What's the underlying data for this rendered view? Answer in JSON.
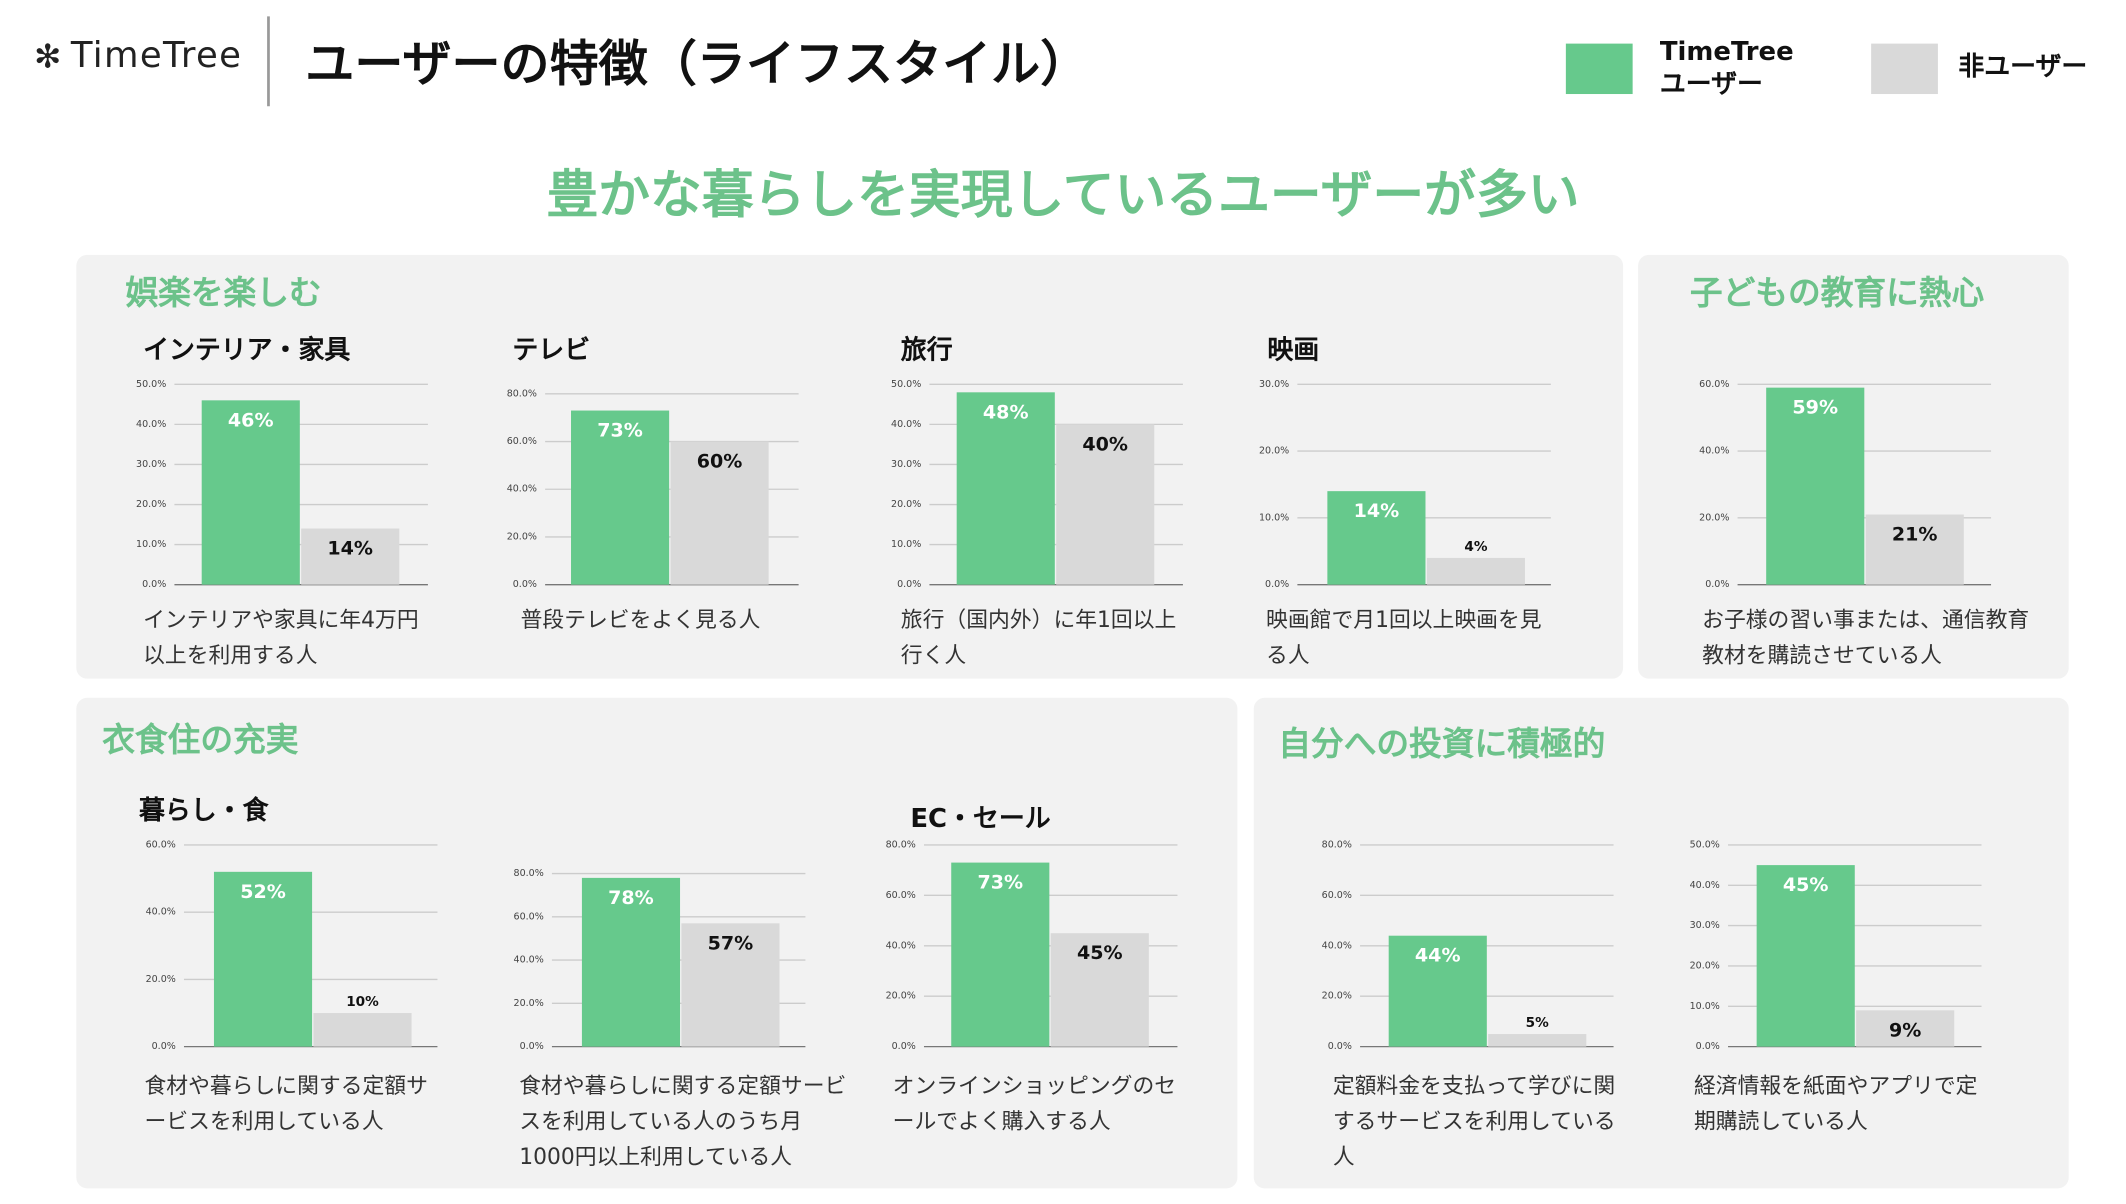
{
  "header": {
    "logo": "TimeTree",
    "title": "ユーザーの特徴（ライフスタイル）",
    "subtitle": "豊かな暮らしを実現しているユーザーが多い"
  },
  "legend": [
    {
      "name": "TimeTree\nユーザー",
      "color": "#66c98c"
    },
    {
      "name": "非ユーザー",
      "color": "#d9d9d9"
    }
  ],
  "sections": [
    {
      "title": "娯楽を楽しむ"
    },
    {
      "title": "子どもの教育に熱心"
    },
    {
      "title": "衣食住の充実"
    },
    {
      "title": "自分への投資に積極的"
    }
  ],
  "chart_data": [
    {
      "type": "bar",
      "title": "インテリア・家具",
      "caption": "インテリアや家具に年4万円以上を利用する人",
      "values": [
        46,
        14
      ],
      "value_labels": [
        "46%",
        "14%"
      ],
      "ylim": [
        0,
        50
      ],
      "yticks": [
        {
          "value": 0,
          "label": "0.0%"
        },
        {
          "value": 10,
          "label": "10.0%"
        },
        {
          "value": 20,
          "label": "20.0%"
        },
        {
          "value": 30,
          "label": "30.0%"
        },
        {
          "value": 40,
          "label": "40.0%"
        },
        {
          "value": 50,
          "label": "50.0%"
        }
      ],
      "grid": true
    },
    {
      "type": "bar",
      "title": "テレビ",
      "caption": "普段テレビをよく見る人",
      "values": [
        73,
        60
      ],
      "value_labels": [
        "73%",
        "60%"
      ],
      "ylim": [
        0,
        80
      ],
      "yticks": [
        {
          "value": 0,
          "label": "0.0%"
        },
        {
          "value": 20,
          "label": "20.0%"
        },
        {
          "value": 40,
          "label": "40.0%"
        },
        {
          "value": 60,
          "label": "60.0%"
        },
        {
          "value": 80,
          "label": "80.0%"
        }
      ],
      "grid": true
    },
    {
      "type": "bar",
      "title": "旅行",
      "caption": "旅行（国内外）に年1回以上行く人",
      "values": [
        48,
        40
      ],
      "value_labels": [
        "48%",
        "40%"
      ],
      "ylim": [
        0,
        50
      ],
      "yticks": [
        {
          "value": 0,
          "label": "0.0%"
        },
        {
          "value": 10,
          "label": "10.0%"
        },
        {
          "value": 20,
          "label": "20.0%"
        },
        {
          "value": 30,
          "label": "30.0%"
        },
        {
          "value": 40,
          "label": "40.0%"
        },
        {
          "value": 50,
          "label": "50.0%"
        }
      ],
      "grid": true
    },
    {
      "type": "bar",
      "title": "映画",
      "caption": "映画館で月1回以上映画を見る人",
      "values": [
        14,
        4
      ],
      "value_labels": [
        "14%",
        "4%"
      ],
      "ylim": [
        0,
        30
      ],
      "yticks": [
        {
          "value": 0,
          "label": "0.0%"
        },
        {
          "value": 10,
          "label": "10.0%"
        },
        {
          "value": 20,
          "label": "20.0%"
        },
        {
          "value": 30,
          "label": "30.0%"
        }
      ],
      "grid": true
    },
    {
      "type": "bar",
      "caption": "お子様の習い事または、通信教育教材を購読させている人",
      "values": [
        59,
        21
      ],
      "value_labels": [
        "59%",
        "21%"
      ],
      "ylim": [
        0,
        60
      ],
      "yticks": [
        {
          "value": 0,
          "label": "0.0%"
        },
        {
          "value": 20,
          "label": "20.0%"
        },
        {
          "value": 40,
          "label": "40.0%"
        },
        {
          "value": 60,
          "label": "60.0%"
        }
      ],
      "grid": true
    },
    {
      "type": "bar",
      "title": "暮らし・食",
      "caption": "食材や暮らしに関する定額サービスを利用している人",
      "values": [
        52,
        10
      ],
      "value_labels": [
        "52%",
        "10%"
      ],
      "ylim": [
        0,
        60
      ],
      "yticks": [
        {
          "value": 0,
          "label": "0.0%"
        },
        {
          "value": 20,
          "label": "20.0%"
        },
        {
          "value": 40,
          "label": "40.0%"
        },
        {
          "value": 60,
          "label": "60.0%"
        }
      ],
      "grid": true
    },
    {
      "type": "bar",
      "caption": "食材や暮らしに関する定額サービスを利用している人のうち月1000円以上利用している人",
      "values": [
        78,
        57
      ],
      "value_labels": [
        "78%",
        "57%"
      ],
      "ylim": [
        0,
        80
      ],
      "yticks": [
        {
          "value": 0,
          "label": "0.0%"
        },
        {
          "value": 20,
          "label": "20.0%"
        },
        {
          "value": 40,
          "label": "40.0%"
        },
        {
          "value": 60,
          "label": "60.0%"
        },
        {
          "value": 80,
          "label": "80.0%"
        }
      ],
      "grid": true
    },
    {
      "type": "bar",
      "title": "EC・セール",
      "caption": "オンラインショッピングのセールでよく購入する人",
      "values": [
        73,
        45
      ],
      "value_labels": [
        "73%",
        "45%"
      ],
      "ylim": [
        0,
        80
      ],
      "yticks": [
        {
          "value": 0,
          "label": "0.0%"
        },
        {
          "value": 20,
          "label": "20.0%"
        },
        {
          "value": 40,
          "label": "40.0%"
        },
        {
          "value": 60,
          "label": "60.0%"
        },
        {
          "value": 80,
          "label": "80.0%"
        }
      ],
      "grid": true
    },
    {
      "type": "bar",
      "caption": "定額料金を支払って学びに関するサービスを利用している人",
      "values": [
        44,
        5
      ],
      "value_labels": [
        "44%",
        "5%"
      ],
      "ylim": [
        0,
        80
      ],
      "yticks": [
        {
          "value": 0,
          "label": "0.0%"
        },
        {
          "value": 20,
          "label": "20.0%"
        },
        {
          "value": 40,
          "label": "40.0%"
        },
        {
          "value": 60,
          "label": "60.0%"
        },
        {
          "value": 80,
          "label": "80.0%"
        }
      ],
      "grid": true
    },
    {
      "type": "bar",
      "caption": "経済情報を紙面やアプリで定期購読している人",
      "values": [
        45,
        9
      ],
      "value_labels": [
        "45%",
        "9%"
      ],
      "ylim": [
        0,
        50
      ],
      "yticks": [
        {
          "value": 0,
          "label": "0.0%"
        },
        {
          "value": 10,
          "label": "10.0%"
        },
        {
          "value": 20,
          "label": "20.0%"
        },
        {
          "value": 30,
          "label": "30.0%"
        },
        {
          "value": 40,
          "label": "40.0%"
        },
        {
          "value": 50,
          "label": "50.0%"
        }
      ],
      "grid": true
    }
  ]
}
